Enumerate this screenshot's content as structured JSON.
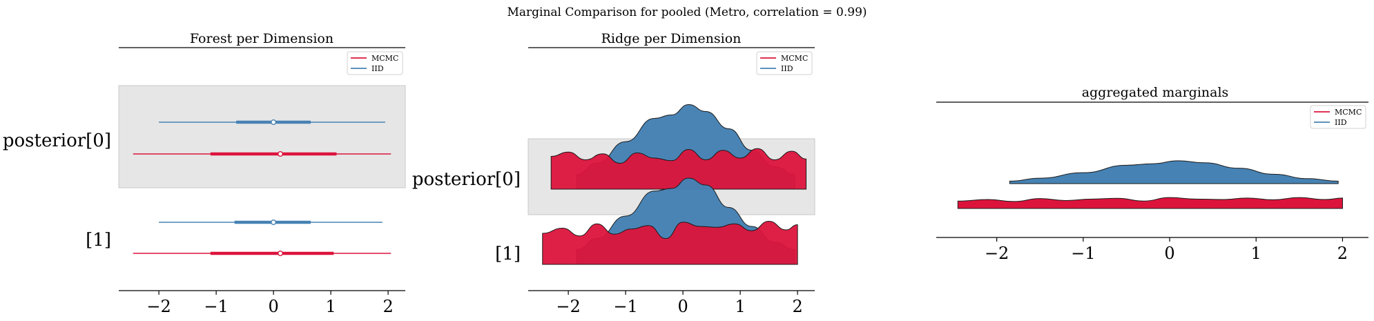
{
  "figure": {
    "suptitle": "Marginal Comparison for pooled (Metro, correlation = 0.99)"
  },
  "colors": {
    "mcmc": "#dc143c",
    "iid": "#4682b4",
    "band": "#e6e6e6",
    "band_edge": "#c8c8c8"
  },
  "chart_data": [
    {
      "type": "forest",
      "title": "Forest per Dimension",
      "xlim": [
        -2.7,
        2.3
      ],
      "xticks": [
        -2,
        -1,
        0,
        1,
        2
      ],
      "xtick_labels": [
        "−2",
        "−1",
        "0",
        "1",
        "2"
      ],
      "rows": [
        "posterior[0]",
        "[1]"
      ],
      "legend": {
        "placement": "top-right",
        "entries": [
          "MCMC",
          "IID"
        ]
      },
      "series": [
        {
          "name": "MCMC",
          "color": "#dc143c",
          "intervals": [
            {
              "row": "posterior[0]",
              "hdi_low": -2.45,
              "hdi_high": 2.05,
              "iqr_low": -1.1,
              "iqr_high": 1.1,
              "point": 0.12
            },
            {
              "row": "[1]",
              "hdi_low": -2.45,
              "hdi_high": 2.05,
              "iqr_low": -1.1,
              "iqr_high": 1.05,
              "point": 0.12
            }
          ]
        },
        {
          "name": "IID",
          "color": "#4682b4",
          "intervals": [
            {
              "row": "posterior[0]",
              "hdi_low": -2.0,
              "hdi_high": 1.95,
              "iqr_low": -0.65,
              "iqr_high": 0.65,
              "point": 0.0
            },
            {
              "row": "[1]",
              "hdi_low": -2.0,
              "hdi_high": 1.9,
              "iqr_low": -0.68,
              "iqr_high": 0.65,
              "point": 0.0
            }
          ]
        }
      ]
    },
    {
      "type": "ridge",
      "title": "Ridge per Dimension",
      "xlim": [
        -2.7,
        2.3
      ],
      "xticks": [
        -2,
        -1,
        0,
        1,
        2
      ],
      "xtick_labels": [
        "−2",
        "−1",
        "0",
        "1",
        "2"
      ],
      "rows": [
        "posterior[0]",
        "[1]"
      ],
      "legend": {
        "placement": "top-right",
        "entries": [
          "MCMC",
          "IID"
        ]
      },
      "series": [
        {
          "name": "IID",
          "color": "#4682b4",
          "ridges": [
            {
              "row": "posterior[0]",
              "x": [
                -1.85,
                -1.5,
                -1.0,
                -0.5,
                -0.2,
                0.1,
                0.4,
                0.8,
                1.2,
                1.6,
                1.95
              ],
              "density": [
                0.17,
                0.3,
                0.55,
                0.82,
                0.86,
                0.98,
                0.9,
                0.7,
                0.45,
                0.26,
                0.17
              ]
            },
            {
              "row": "[1]",
              "x": [
                -1.85,
                -1.5,
                -1.0,
                -0.5,
                -0.2,
                0.1,
                0.4,
                0.8,
                1.2,
                1.6,
                1.95
              ],
              "density": [
                0.17,
                0.3,
                0.56,
                0.85,
                0.88,
                1.0,
                0.92,
                0.66,
                0.44,
                0.26,
                0.17
              ]
            }
          ]
        },
        {
          "name": "MCMC",
          "color": "#dc143c",
          "ridges": [
            {
              "row": "posterior[0]",
              "x": [
                -2.3,
                -2.0,
                -1.7,
                -1.4,
                -1.1,
                -0.8,
                -0.5,
                -0.2,
                0.1,
                0.4,
                0.7,
                1.0,
                1.3,
                1.6,
                1.9,
                2.15
              ],
              "density": [
                0.38,
                0.43,
                0.34,
                0.41,
                0.3,
                0.42,
                0.36,
                0.33,
                0.46,
                0.34,
                0.45,
                0.36,
                0.47,
                0.34,
                0.44,
                0.35
              ]
            },
            {
              "row": "[1]",
              "x": [
                -2.45,
                -2.1,
                -1.8,
                -1.5,
                -1.2,
                -0.9,
                -0.6,
                -0.3,
                0.0,
                0.3,
                0.6,
                0.9,
                1.2,
                1.5,
                1.8,
                2.0
              ],
              "density": [
                0.36,
                0.42,
                0.33,
                0.47,
                0.35,
                0.41,
                0.45,
                0.3,
                0.49,
                0.44,
                0.43,
                0.47,
                0.39,
                0.5,
                0.4,
                0.46
              ]
            }
          ]
        }
      ]
    },
    {
      "type": "area",
      "title": "aggregated marginals",
      "xlim": [
        -2.7,
        2.3
      ],
      "xticks": [
        -2,
        -1,
        0,
        1,
        2
      ],
      "xtick_labels": [
        "−2",
        "−1",
        "0",
        "1",
        "2"
      ],
      "legend": {
        "placement": "top-right",
        "entries": [
          "MCMC",
          "IID"
        ]
      },
      "series": [
        {
          "name": "IID",
          "color": "#4682b4",
          "x": [
            -1.85,
            -1.5,
            -1.0,
            -0.5,
            -0.2,
            0.1,
            0.4,
            0.8,
            1.2,
            1.6,
            1.95
          ],
          "density": [
            0.1,
            0.22,
            0.44,
            0.74,
            0.8,
            0.92,
            0.84,
            0.62,
            0.38,
            0.2,
            0.1
          ]
        },
        {
          "name": "MCMC",
          "color": "#dc143c",
          "x": [
            -2.45,
            -2.1,
            -1.8,
            -1.5,
            -1.2,
            -0.9,
            -0.6,
            -0.3,
            0.0,
            0.3,
            0.6,
            0.9,
            1.2,
            1.5,
            1.8,
            2.0
          ],
          "density": [
            0.3,
            0.36,
            0.28,
            0.4,
            0.32,
            0.38,
            0.41,
            0.3,
            0.44,
            0.38,
            0.36,
            0.42,
            0.35,
            0.44,
            0.36,
            0.42
          ]
        }
      ]
    }
  ]
}
